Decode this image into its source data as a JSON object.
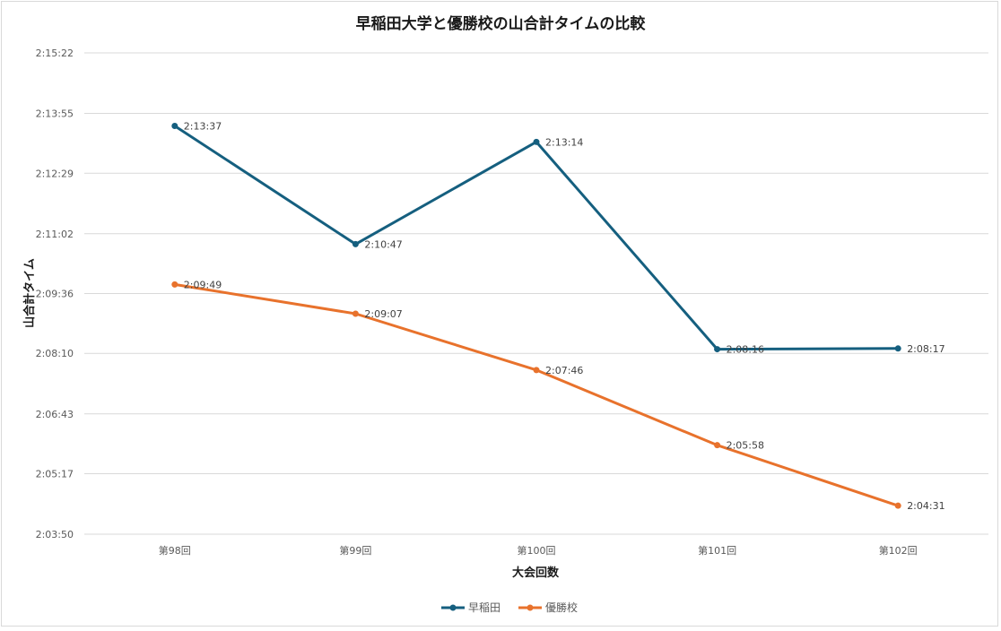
{
  "chart_data": {
    "type": "line",
    "title": "早稲田大学と優勝校の山合計タイムの比較",
    "xlabel": "大会回数",
    "ylabel": "山合計タイム",
    "categories": [
      "第98回",
      "第99回",
      "第100回",
      "第101回",
      "第102回"
    ],
    "y_ticks": [
      "2:03:50",
      "2:05:17",
      "2:06:43",
      "2:08:10",
      "2:09:36",
      "2:11:02",
      "2:12:29",
      "2:13:55",
      "2:15:22"
    ],
    "ylim": [
      "2:03:50",
      "2:15:22"
    ],
    "grid": true,
    "legend_position": "bottom",
    "series": [
      {
        "name": "早稲田",
        "color": "#155f7f",
        "values": [
          "2:13:37",
          "2:10:47",
          "2:13:14",
          "2:08:16",
          "2:08:17"
        ],
        "labels": [
          "2:13:37",
          "2:10:47",
          "2:13:14",
          "2:08:16",
          "2:08:17"
        ]
      },
      {
        "name": "優勝校",
        "color": "#e8722c",
        "values": [
          "2:09:49",
          "2:09:07",
          "2:07:46",
          "2:05:58",
          "2:04:31"
        ],
        "labels": [
          "2:09:49",
          "2:09:07",
          "2:07:46",
          "2:05:58",
          "2:04:31"
        ]
      }
    ]
  }
}
